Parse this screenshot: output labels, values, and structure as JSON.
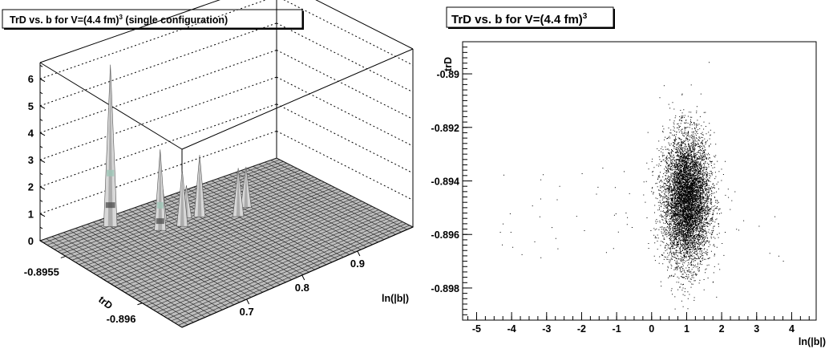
{
  "chart_data": [
    {
      "type": "surface3d",
      "title_base": "TrD vs. b for V=(4.4 fm)",
      "title_exp": "3",
      "title_suffix": " (single configuration)",
      "xlabel": "ln(|b|)",
      "ylabel": "trD",
      "xticks": [
        "0.7",
        "0.8",
        "0.9"
      ],
      "yticks": [
        "-0.8955",
        "-0.896"
      ],
      "zticks": [
        "0",
        "1",
        "2",
        "3",
        "4",
        "5",
        "6"
      ],
      "zlim": [
        0,
        6.6
      ],
      "peaks": [
        {
          "x": 0.675,
          "y": -0.89605,
          "z": 6.0
        },
        {
          "x": 0.715,
          "y": -0.89592,
          "z": 1.6
        },
        {
          "x": 0.738,
          "y": -0.89586,
          "z": 1.2
        },
        {
          "x": 0.748,
          "y": -0.89596,
          "z": 3.0
        },
        {
          "x": 0.752,
          "y": -0.89583,
          "z": 2.3
        },
        {
          "x": 0.762,
          "y": -0.8959,
          "z": 2.1
        },
        {
          "x": 0.778,
          "y": -0.8957,
          "z": 1.5
        },
        {
          "x": 0.8,
          "y": -0.89575,
          "z": 1.8
        }
      ]
    },
    {
      "type": "scatter",
      "title_base": "TrD vs. b for V=(4.4 fm)",
      "title_exp": "3",
      "xlabel": "ln(|b|)",
      "ylabel": "trD",
      "xlim": [
        -5.4,
        4.7
      ],
      "ylim": [
        -0.8992,
        -0.8888
      ],
      "xticks": [
        "-5",
        "-4",
        "-3",
        "-2",
        "-1",
        "0",
        "1",
        "2",
        "3",
        "4"
      ],
      "yticks": [
        "-0.89",
        "-0.892",
        "-0.894",
        "-0.896",
        "-0.898"
      ],
      "cloud_center": {
        "x": 1.0,
        "y": -0.8947
      },
      "cloud_spread": {
        "x": 0.33,
        "y": 0.0012
      },
      "points": 9000
    }
  ]
}
